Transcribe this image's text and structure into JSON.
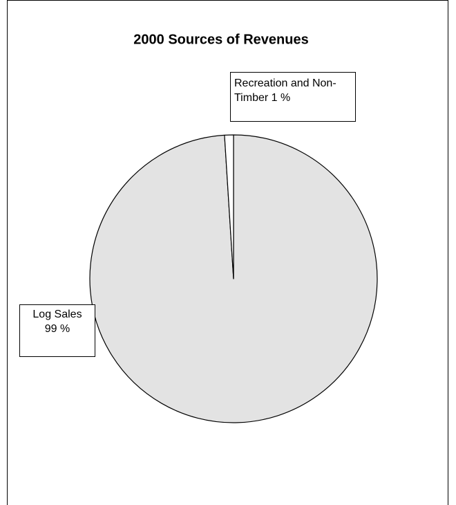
{
  "chart_data": {
    "type": "pie",
    "title": "2000 Sources of Revenues",
    "categories": [
      "Log Sales",
      "Recreation and Non-Timber"
    ],
    "values": [
      99,
      1
    ],
    "value_labels": [
      "99 %",
      "1 %"
    ],
    "colors": [
      "#e3e3e3",
      "#ffffff"
    ]
  }
}
